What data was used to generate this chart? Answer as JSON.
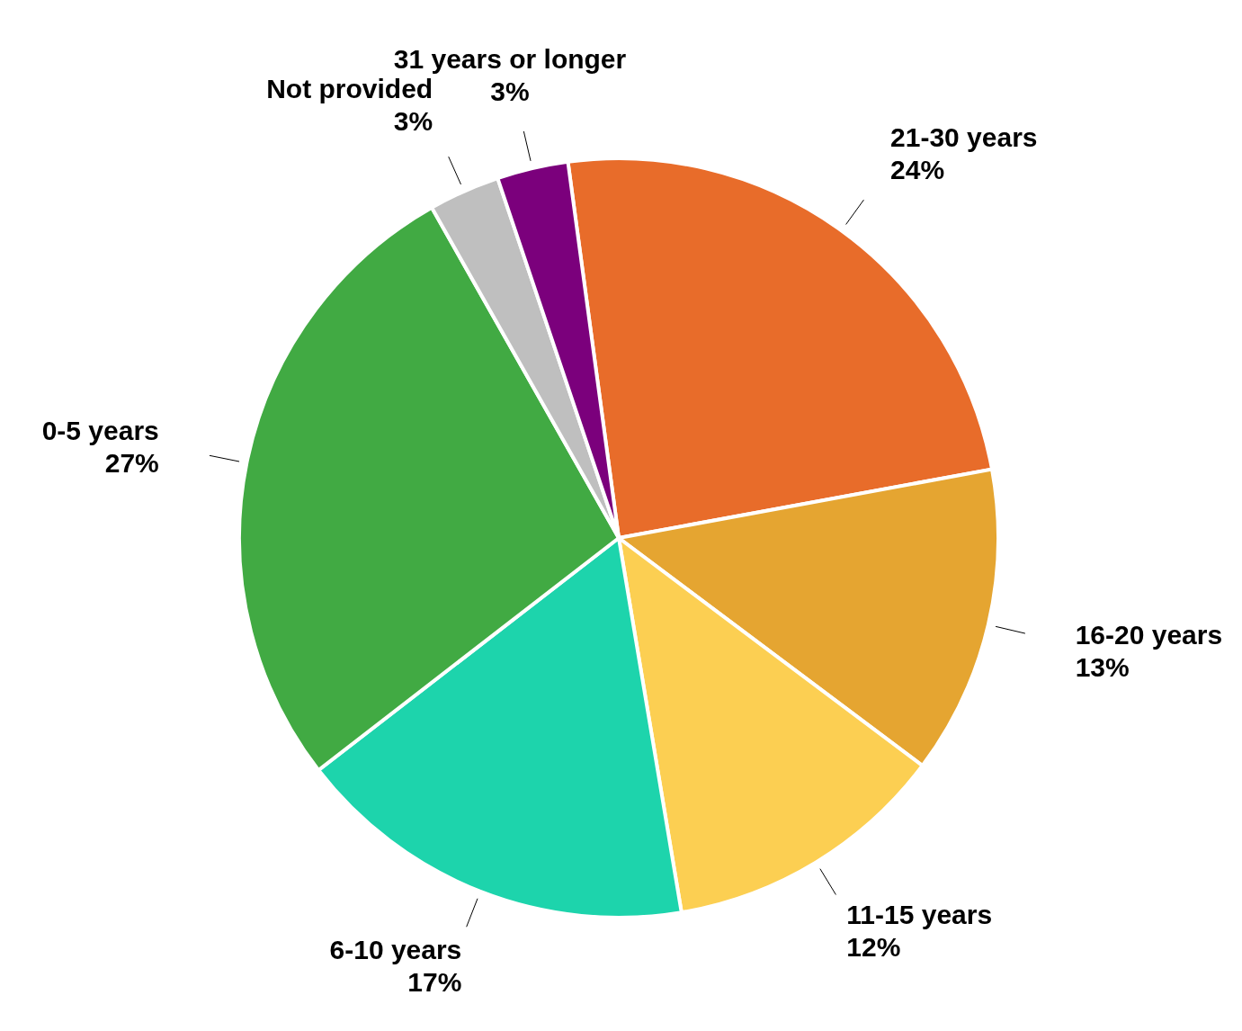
{
  "chart_data": {
    "type": "pie",
    "categories": [
      "21-30 years",
      "16-20 years",
      "11-15 years",
      "6-10 years",
      "0-5 years",
      "Not provided",
      "31 years or longer"
    ],
    "values": [
      24,
      13,
      12,
      17,
      27,
      3,
      3
    ],
    "value_labels": [
      "24%",
      "13%",
      "12%",
      "17%",
      "27%",
      "3%",
      "3%"
    ],
    "colors": [
      "#e86c2a",
      "#e5a531",
      "#fccf52",
      "#1dd4ac",
      "#41aa43",
      "#bfbfbf",
      "#7b007c"
    ]
  }
}
